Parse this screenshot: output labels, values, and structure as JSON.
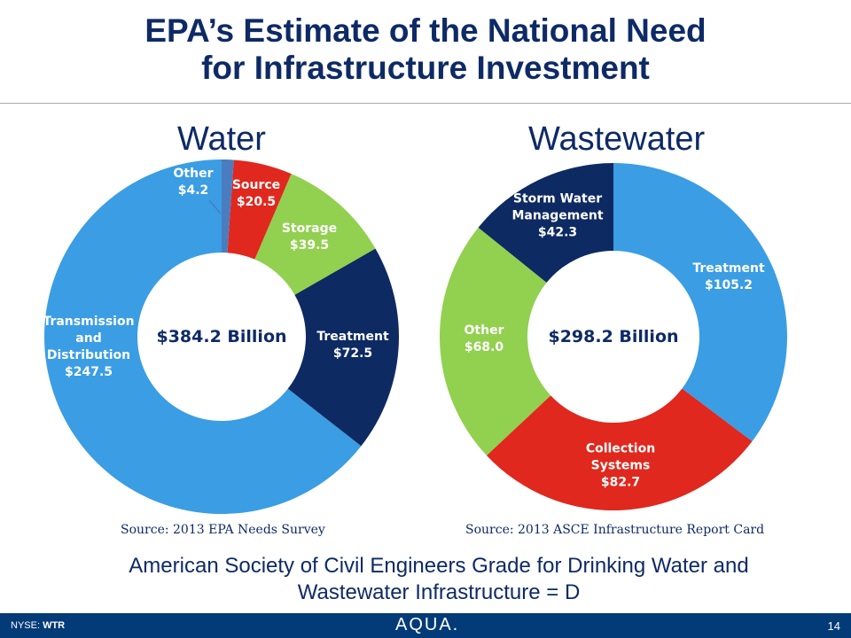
{
  "title_line1": "EPA’s Estimate of the National Need",
  "title_line2": "for Infrastructure Investment",
  "chart_data": [
    {
      "type": "pie",
      "subtitle": "Water",
      "center_label": "$384.2 Billion",
      "source": "Source: 2013 EPA Needs Survey",
      "categories": [
        "Other",
        "Source",
        "Storage",
        "Treatment",
        "Transmission and Distribution"
      ],
      "values": [
        4.2,
        20.5,
        39.5,
        72.5,
        247.5
      ],
      "value_labels": [
        "$4.2",
        "$20.5",
        "$39.5",
        "$72.5",
        "$247.5"
      ],
      "colors": [
        "#4a7cc0",
        "#e0281e",
        "#92d050",
        "#0d2a62",
        "#3b9de3"
      ]
    },
    {
      "type": "pie",
      "subtitle": "Wastewater",
      "center_label": "$298.2 Billion",
      "source": "Source: 2013 ASCE Infrastructure Report Card",
      "categories": [
        "Treatment",
        "Collection Systems",
        "Other",
        "Storm Water Management"
      ],
      "values": [
        105.2,
        82.7,
        68.0,
        42.3
      ],
      "value_labels": [
        "$105.2",
        "$82.7",
        "$68.0",
        "$42.3"
      ],
      "colors": [
        "#3b9de3",
        "#e0281e",
        "#92d050",
        "#0d2a62"
      ]
    }
  ],
  "grade_text": "American Society of Civil Engineers Grade for Drinking Water and Wastewater Infrastructure = D",
  "footer": {
    "ticker_prefix": "NYSE: ",
    "ticker": "WTR",
    "logo": "AQUA.",
    "page": "14"
  }
}
